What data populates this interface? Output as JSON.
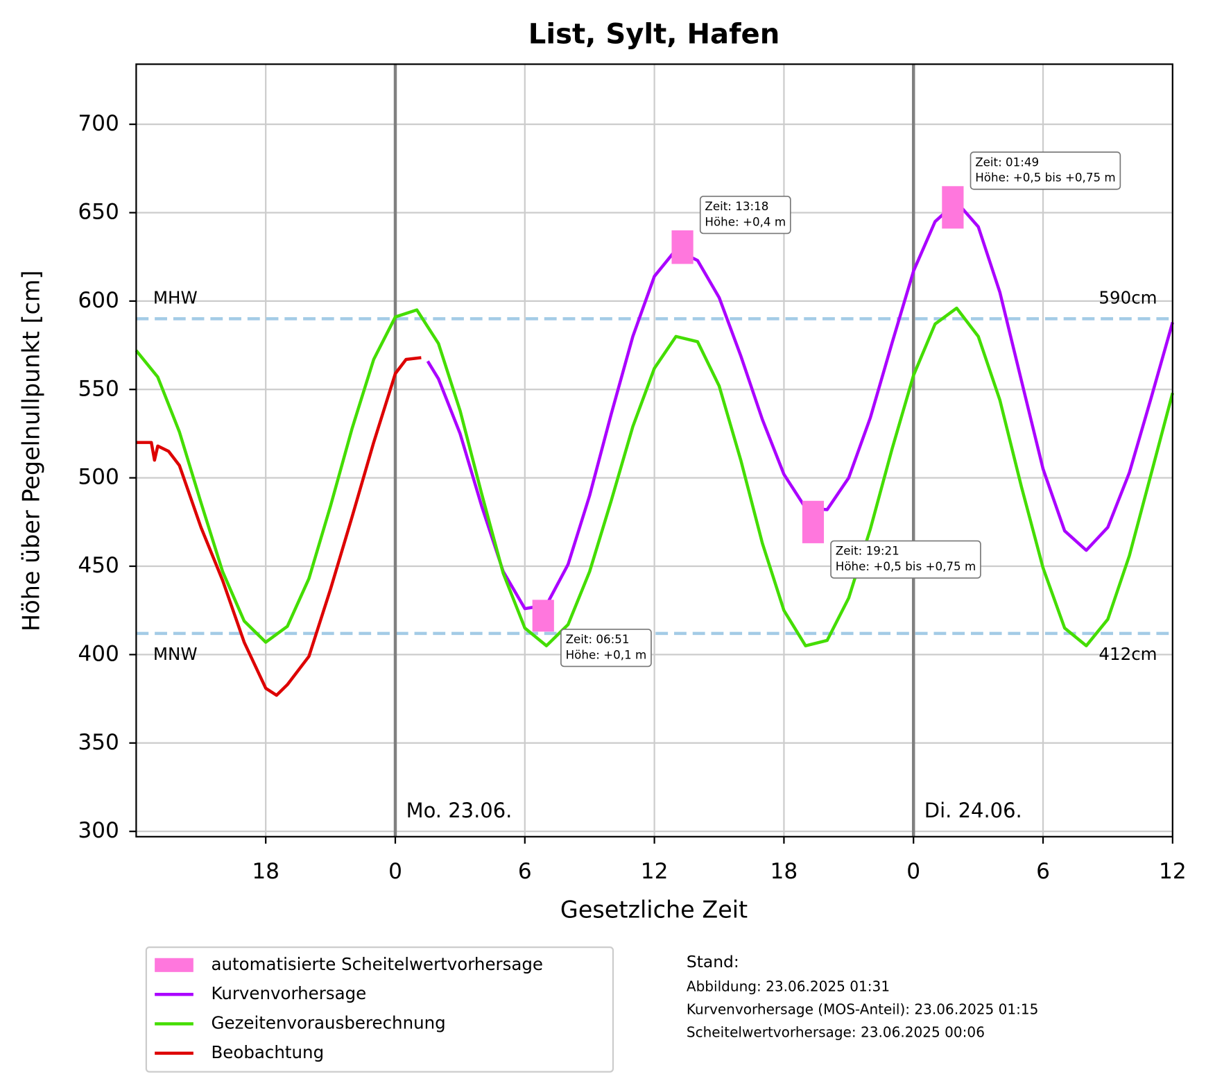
{
  "chart_data": {
    "type": "line",
    "title": "List, Sylt, Hafen",
    "xlabel": "Gesetzliche Zeit",
    "ylabel": "Höhe über Pegelnullpunkt [cm]",
    "xlim": [
      -12,
      36
    ],
    "ylim": [
      297,
      734
    ],
    "xticks": [
      {
        "value": -6,
        "label": "18"
      },
      0,
      6,
      12,
      18,
      {
        "value": 24,
        "label": "0"
      },
      {
        "value": 30,
        "label": "6"
      },
      {
        "value": 36,
        "label": "12"
      }
    ],
    "yticks": [
      300,
      350,
      400,
      450,
      500,
      550,
      600,
      650,
      700
    ],
    "grid": true,
    "legend": "bottom",
    "day_lines": [
      {
        "x": 0,
        "label": "Mo. 23.06."
      },
      {
        "x": 24,
        "label": "Di. 24.06."
      }
    ],
    "reference_lines": [
      {
        "name": "MHW",
        "value": 590,
        "value_label": "590cm",
        "color": "#a3cbe6"
      },
      {
        "name": "MNW",
        "value": 412,
        "value_label": "412cm",
        "color": "#a3cbe6"
      }
    ],
    "peaks": {
      "name": "automatisierte Scheitelwertvorhersage",
      "color": "#ff77dd",
      "x": [
        6.85,
        13.3,
        19.35,
        25.82
      ],
      "low": [
        413,
        621,
        463,
        641
      ],
      "high": [
        431,
        640,
        487,
        665
      ],
      "labels": [
        [
          "Zeit: 06:51",
          "Höhe: +0,1 m"
        ],
        [
          "Zeit: 13:18",
          "Höhe: +0,4 m"
        ],
        [
          "Zeit: 19:21",
          "Höhe: +0,5 bis +0,75 m"
        ],
        [
          "Zeit: 01:49",
          "Höhe: +0,5 bis +0,75 m"
        ]
      ]
    },
    "series": [
      {
        "name": "Kurvenvorhersage",
        "color": "#aa00ff",
        "x": [
          1.5,
          2,
          3,
          4,
          5,
          6,
          7,
          8,
          9,
          10,
          11,
          12,
          13,
          14,
          15,
          16,
          17,
          18,
          19,
          20,
          21,
          22,
          23,
          24,
          25,
          26,
          27,
          28,
          29,
          30,
          31,
          32,
          33,
          34,
          35,
          36
        ],
        "values": [
          566,
          556,
          525,
          484,
          447,
          426,
          428,
          451,
          490,
          536,
          580,
          614,
          629,
          623,
          602,
          569,
          533,
          502,
          483,
          482,
          500,
          534,
          576,
          617,
          645,
          656,
          642,
          605,
          555,
          505,
          470,
          459,
          472,
          503,
          545,
          588
        ]
      },
      {
        "name": "Gezeitenvorausberechnung",
        "color": "#44dd00",
        "x": [
          -12,
          -11,
          -10,
          -9,
          -8,
          -7,
          -6,
          -5,
          -4,
          -3,
          -2,
          -1,
          0,
          1,
          2,
          3,
          4,
          5,
          6,
          7,
          8,
          9,
          10,
          11,
          12,
          13,
          14,
          15,
          16,
          17,
          18,
          19,
          20,
          21,
          22,
          23,
          24,
          25,
          26,
          27,
          28,
          29,
          30,
          31,
          32,
          33,
          34,
          35,
          36
        ],
        "values": [
          572,
          557,
          526,
          486,
          447,
          419,
          407,
          416,
          443,
          484,
          528,
          567,
          591,
          595,
          576,
          538,
          491,
          446,
          415,
          405,
          417,
          447,
          487,
          529,
          562,
          580,
          577,
          552,
          510,
          463,
          425,
          405,
          408,
          432,
          471,
          516,
          558,
          587,
          596,
          580,
          544,
          495,
          449,
          415,
          405,
          420,
          456,
          502,
          548
        ]
      },
      {
        "name": "Beobachtung",
        "color": "#dd0000",
        "x": [
          -12,
          -11.3,
          -11.15,
          -11,
          -10.5,
          -10,
          -9,
          -8,
          -7,
          -6,
          -5.5,
          -5,
          -4,
          -3,
          -2,
          -1,
          0,
          0.5,
          1.2
        ],
        "values": [
          520,
          520,
          510,
          518,
          515,
          507,
          472,
          442,
          407,
          381,
          377,
          383,
          399,
          437,
          478,
          520,
          559,
          567,
          568
        ]
      }
    ],
    "footnote": {
      "title": "Stand:",
      "lines": [
        "Abbildung: 23.06.2025 01:31",
        "Kurvenvorhersage (MOS-Anteil): 23.06.2025 01:15",
        "Scheitelwertvorhersage: 23.06.2025 00:06"
      ]
    }
  }
}
